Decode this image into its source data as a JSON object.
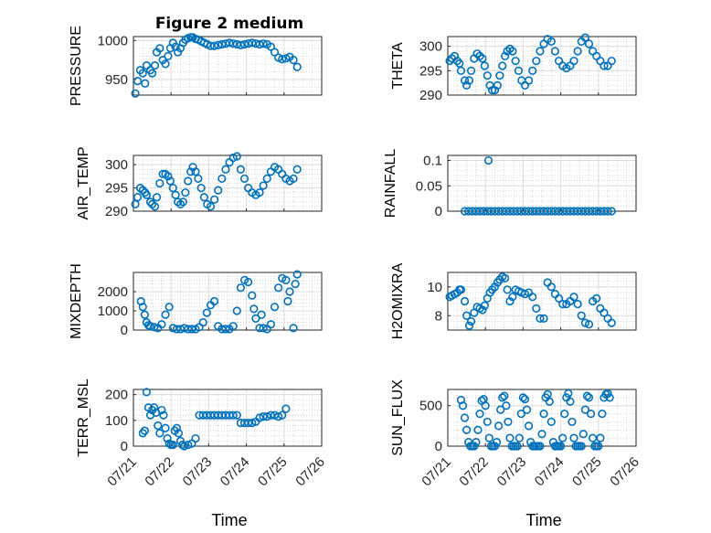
{
  "figure_title": "Figure 2 medium",
  "marker_color": "#0072BD",
  "chart_data": [
    {
      "type": "scatter",
      "ylabel": "PRESSURE",
      "ylim": [
        930,
        1005
      ],
      "yticks": [
        950,
        1000
      ],
      "ytick_labels": [
        "950",
        "1000"
      ],
      "xlim": [
        0,
        5
      ],
      "xticks": [
        0,
        1,
        2,
        3,
        4,
        5
      ],
      "xtick_labels": [],
      "x": [
        0.05,
        0.11,
        0.18,
        0.25,
        0.31,
        0.35,
        0.45,
        0.5,
        0.57,
        0.62,
        0.7,
        0.78,
        0.85,
        0.92,
        0.98,
        1.05,
        1.12,
        1.18,
        1.25,
        1.32,
        1.38,
        1.45,
        1.52,
        1.58,
        1.65,
        1.72,
        1.8,
        1.88,
        1.96,
        2.05,
        2.15,
        2.25,
        2.35,
        2.45,
        2.55,
        2.65,
        2.75,
        2.85,
        2.95,
        3.05,
        3.15,
        3.25,
        3.35,
        3.45,
        3.55,
        3.65,
        3.75,
        3.85,
        3.95,
        4.05,
        4.15,
        4.25,
        4.35
      ],
      "y": [
        932,
        948,
        962,
        958,
        945,
        968,
        962,
        958,
        968,
        985,
        990,
        975,
        970,
        980,
        990,
        997,
        992,
        985,
        990,
        997,
        1001,
        1003,
        1004,
        1004,
        1002,
        1001,
        999,
        997,
        995,
        993,
        993,
        994,
        995,
        996,
        997,
        996,
        995,
        994,
        995,
        996,
        997,
        996,
        995,
        996,
        995,
        992,
        985,
        978,
        976,
        977,
        979,
        975,
        966
      ],
      "title": "Figure 2 medium"
    },
    {
      "type": "scatter",
      "ylabel": "THETA",
      "ylim": [
        290,
        302
      ],
      "yticks": [
        290,
        295,
        300
      ],
      "ytick_labels": [
        "290",
        "295",
        "300"
      ],
      "xlim": [
        0,
        5
      ],
      "xticks": [
        0,
        1,
        2,
        3,
        4,
        5
      ],
      "xtick_labels": [],
      "x": [
        0.05,
        0.11,
        0.18,
        0.25,
        0.31,
        0.35,
        0.45,
        0.5,
        0.57,
        0.62,
        0.7,
        0.78,
        0.85,
        0.92,
        0.98,
        1.05,
        1.12,
        1.18,
        1.25,
        1.32,
        1.38,
        1.45,
        1.52,
        1.58,
        1.65,
        1.72,
        1.8,
        1.88,
        1.96,
        2.05,
        2.15,
        2.25,
        2.35,
        2.45,
        2.55,
        2.65,
        2.75,
        2.85,
        2.95,
        3.05,
        3.15,
        3.25,
        3.35,
        3.45,
        3.55,
        3.65,
        3.75,
        3.85,
        3.95,
        4.05,
        4.15,
        4.25,
        4.35
      ],
      "y": [
        297,
        297.5,
        298,
        297,
        296.5,
        295,
        293,
        292,
        293,
        295,
        297.5,
        298.5,
        298,
        297.5,
        296,
        294,
        292,
        291,
        291,
        292,
        294,
        296,
        298,
        299,
        299.5,
        299,
        297,
        295,
        293,
        292,
        293,
        295,
        297,
        299,
        300.5,
        301.5,
        301,
        299,
        297,
        296,
        295.5,
        296,
        297,
        299,
        301,
        301.8,
        300.5,
        299,
        298,
        297,
        296,
        296,
        297
      ],
      "title": ""
    },
    {
      "type": "scatter",
      "ylabel": "AIR_TEMP",
      "ylim": [
        290,
        302
      ],
      "yticks": [
        290,
        295,
        300
      ],
      "ytick_labels": [
        "290",
        "295",
        "300"
      ],
      "xlim": [
        0,
        5
      ],
      "xticks": [
        0,
        1,
        2,
        3,
        4,
        5
      ],
      "xtick_labels": [],
      "x": [
        0.05,
        0.11,
        0.18,
        0.25,
        0.31,
        0.35,
        0.45,
        0.5,
        0.57,
        0.62,
        0.7,
        0.78,
        0.85,
        0.92,
        0.98,
        1.05,
        1.12,
        1.18,
        1.25,
        1.32,
        1.38,
        1.45,
        1.52,
        1.58,
        1.65,
        1.72,
        1.8,
        1.88,
        1.96,
        2.05,
        2.15,
        2.25,
        2.35,
        2.45,
        2.55,
        2.65,
        2.75,
        2.85,
        2.95,
        3.05,
        3.15,
        3.25,
        3.35,
        3.45,
        3.55,
        3.65,
        3.75,
        3.85,
        3.95,
        4.05,
        4.15,
        4.25,
        4.35
      ],
      "y": [
        291.5,
        293,
        295,
        294.5,
        294,
        293.5,
        292,
        291.5,
        291,
        293,
        296,
        298,
        298,
        297.5,
        296.5,
        295,
        293.5,
        292,
        291.5,
        292,
        294,
        296.5,
        298.5,
        299.5,
        298.5,
        297,
        295,
        293,
        291.5,
        291,
        292.5,
        294.5,
        297,
        299,
        300.5,
        301.5,
        301.8,
        299,
        297,
        295,
        294,
        293.5,
        294,
        295.5,
        297,
        298.5,
        299.5,
        299,
        298,
        297,
        296.5,
        297,
        299
      ],
      "title": ""
    },
    {
      "type": "scatter",
      "ylabel": "RAINFALL",
      "ylim": [
        0,
        0.11
      ],
      "yticks": [
        0,
        0.05,
        0.1
      ],
      "ytick_labels": [
        "0",
        "0.05",
        "0.1"
      ],
      "xlim": [
        0,
        5
      ],
      "xticks": [
        0,
        1,
        2,
        3,
        4,
        5
      ],
      "xtick_labels": [],
      "x": [
        0.45,
        0.55,
        0.65,
        0.75,
        0.85,
        0.95,
        1.05,
        1.15,
        1.25,
        1.35,
        1.45,
        1.55,
        1.65,
        1.75,
        1.85,
        1.95,
        2.05,
        2.15,
        2.25,
        2.35,
        2.45,
        2.55,
        2.65,
        2.75,
        2.85,
        2.95,
        3.05,
        3.15,
        3.25,
        3.35,
        3.45,
        3.55,
        3.65,
        3.75,
        3.85,
        3.95,
        4.05,
        4.15,
        4.25,
        4.35,
        1.08
      ],
      "y": [
        0,
        0,
        0,
        0,
        0,
        0,
        0,
        0,
        0,
        0,
        0,
        0,
        0,
        0,
        0,
        0,
        0,
        0,
        0,
        0,
        0,
        0,
        0,
        0,
        0,
        0,
        0,
        0,
        0,
        0,
        0,
        0,
        0,
        0,
        0,
        0,
        0,
        0,
        0,
        0,
        0.1
      ],
      "title": ""
    },
    {
      "type": "scatter",
      "ylabel": "MIXDEPTH",
      "ylim": [
        0,
        3000
      ],
      "yticks": [
        0,
        1000,
        2000
      ],
      "ytick_labels": [
        "0",
        "1000",
        "2000"
      ],
      "xlim": [
        0,
        5
      ],
      "xticks": [
        0,
        1,
        2,
        3,
        4,
        5
      ],
      "xtick_labels": [],
      "x": [
        0.2,
        0.25,
        0.3,
        0.35,
        0.4,
        0.45,
        0.55,
        0.65,
        0.75,
        0.85,
        0.95,
        1.05,
        1.15,
        1.25,
        1.35,
        1.45,
        1.55,
        1.65,
        1.75,
        1.85,
        1.95,
        2.05,
        2.15,
        2.25,
        2.35,
        2.45,
        2.55,
        2.65,
        2.75,
        2.85,
        2.95,
        3.05,
        3.15,
        3.25,
        3.35,
        3.45,
        3.55,
        3.65,
        3.75,
        3.85,
        3.95,
        4.05,
        4.15,
        4.25,
        4.35,
        3.2,
        3.4,
        4.1,
        4.3
      ],
      "y": [
        1500,
        1200,
        800,
        400,
        250,
        200,
        150,
        100,
        300,
        800,
        1200,
        100,
        50,
        50,
        100,
        50,
        50,
        50,
        150,
        400,
        900,
        1300,
        1500,
        200,
        50,
        50,
        50,
        200,
        1000,
        2200,
        2600,
        2500,
        1800,
        600,
        100,
        100,
        50,
        300,
        1200,
        2200,
        2700,
        2600,
        2000,
        100,
        2900,
        1100,
        800,
        1500,
        2400
      ],
      "title": ""
    },
    {
      "type": "scatter",
      "ylabel": "H2OMIXRA",
      "ylim": [
        7,
        11
      ],
      "yticks": [
        8,
        10
      ],
      "ytick_labels": [
        "8",
        "10"
      ],
      "xlim": [
        0,
        5
      ],
      "xticks": [
        0,
        1,
        2,
        3,
        4,
        5
      ],
      "xtick_labels": [],
      "x": [
        0.05,
        0.11,
        0.18,
        0.25,
        0.31,
        0.35,
        0.45,
        0.5,
        0.57,
        0.62,
        0.7,
        0.78,
        0.85,
        0.92,
        0.98,
        1.05,
        1.12,
        1.18,
        1.25,
        1.32,
        1.38,
        1.45,
        1.52,
        1.58,
        1.65,
        1.72,
        1.8,
        1.88,
        1.96,
        2.05,
        2.15,
        2.25,
        2.35,
        2.45,
        2.55,
        2.65,
        2.75,
        2.85,
        2.95,
        3.05,
        3.15,
        3.25,
        3.35,
        3.45,
        3.55,
        3.65,
        3.75,
        3.85,
        3.95,
        4.05,
        4.15,
        4.25,
        4.35
      ],
      "y": [
        9.3,
        9.4,
        9.5,
        9.6,
        9.8,
        9.8,
        9.0,
        8.0,
        7.3,
        7.6,
        8.2,
        8.6,
        8.5,
        8.4,
        8.7,
        9.2,
        9.6,
        9.8,
        10.0,
        10.3,
        10.5,
        10.7,
        10.6,
        9.8,
        9.0,
        9.3,
        9.8,
        9.7,
        9.6,
        9.5,
        9.6,
        9.3,
        8.5,
        7.8,
        7.8,
        10.3,
        10.0,
        9.5,
        9.2,
        8.8,
        8.8,
        9.0,
        9.3,
        8.8,
        8.0,
        7.5,
        7.4,
        9.0,
        9.2,
        8.5,
        8.2,
        7.8,
        7.5
      ],
      "title": ""
    },
    {
      "type": "scatter",
      "ylabel": "TERR_MSL",
      "ylim": [
        0,
        220
      ],
      "yticks": [
        0,
        100,
        200
      ],
      "ytick_labels": [
        "0",
        "100",
        "200"
      ],
      "xlim": [
        0,
        5
      ],
      "xticks": [
        0,
        1,
        2,
        3,
        4,
        5
      ],
      "xtick_labels": [],
      "x": [
        0.25,
        0.3,
        0.35,
        0.4,
        0.45,
        0.5,
        0.55,
        0.6,
        0.65,
        0.7,
        0.75,
        0.8,
        0.85,
        0.9,
        0.95,
        1.0,
        1.05,
        1.1,
        1.15,
        1.2,
        1.25,
        1.3,
        1.35,
        1.45,
        1.55,
        1.65,
        1.75,
        1.85,
        1.95,
        2.05,
        2.15,
        2.25,
        2.35,
        2.45,
        2.55,
        2.65,
        2.75,
        2.85,
        2.95,
        3.05,
        3.15,
        3.25,
        3.35,
        3.45,
        3.55,
        3.65,
        3.75,
        3.85,
        3.95,
        4.05
      ],
      "y": [
        50,
        60,
        210,
        150,
        120,
        140,
        150,
        130,
        80,
        50,
        140,
        120,
        70,
        30,
        10,
        5,
        5,
        60,
        70,
        50,
        20,
        5,
        0,
        5,
        10,
        30,
        120,
        120,
        120,
        120,
        120,
        120,
        120,
        120,
        120,
        120,
        120,
        90,
        90,
        90,
        90,
        95,
        110,
        115,
        115,
        120,
        120,
        115,
        120,
        145
      ],
      "title": ""
    },
    {
      "type": "scatter",
      "ylabel": "SUN_FLUX",
      "ylim": [
        0,
        700
      ],
      "yticks": [
        0,
        500
      ],
      "ytick_labels": [
        "0",
        "500"
      ],
      "xlim": [
        0,
        5
      ],
      "xticks": [
        0,
        1,
        2,
        3,
        4,
        5
      ],
      "xtick_labels": [
        "07/21",
        "07/22",
        "07/23",
        "07/24",
        "07/25",
        "07/26"
      ],
      "x": [
        0.35,
        0.4,
        0.45,
        0.5,
        0.55,
        0.6,
        0.65,
        0.7,
        0.75,
        0.8,
        0.85,
        0.9,
        0.95,
        1.0,
        1.05,
        1.1,
        1.15,
        1.2,
        1.25,
        1.3,
        1.35,
        1.4,
        1.45,
        1.5,
        1.55,
        1.6,
        1.65,
        1.7,
        1.75,
        1.8,
        1.85,
        1.9,
        1.95,
        2.0,
        2.05,
        2.1,
        2.15,
        2.2,
        2.25,
        2.3,
        2.35,
        2.4,
        2.45,
        2.5,
        2.55,
        2.6,
        2.65,
        2.7,
        2.75,
        2.8,
        2.85,
        2.9,
        2.95,
        3.0,
        3.05,
        3.1,
        3.15,
        3.2,
        3.25,
        3.3,
        3.35,
        3.4,
        3.45,
        3.5,
        3.55,
        3.6,
        3.65,
        3.7,
        3.75,
        3.8,
        3.85,
        3.9,
        3.95,
        4.0,
        4.05,
        4.1,
        4.15,
        4.2,
        4.25,
        4.3
      ],
      "y": [
        570,
        500,
        350,
        200,
        50,
        0,
        0,
        0,
        50,
        200,
        400,
        560,
        580,
        500,
        300,
        100,
        0,
        0,
        0,
        50,
        250,
        450,
        600,
        620,
        500,
        300,
        100,
        0,
        0,
        0,
        0,
        100,
        400,
        600,
        580,
        450,
        250,
        50,
        0,
        0,
        0,
        0,
        0,
        150,
        400,
        600,
        640,
        550,
        300,
        50,
        0,
        0,
        0,
        0,
        100,
        400,
        600,
        650,
        550,
        300,
        100,
        0,
        0,
        0,
        0,
        150,
        450,
        620,
        600,
        400,
        100,
        0,
        0,
        0,
        100,
        400,
        600,
        640,
        650,
        600
      ],
      "title": ""
    }
  ],
  "xlabel_left": "Time",
  "xlabel_right": "Time"
}
